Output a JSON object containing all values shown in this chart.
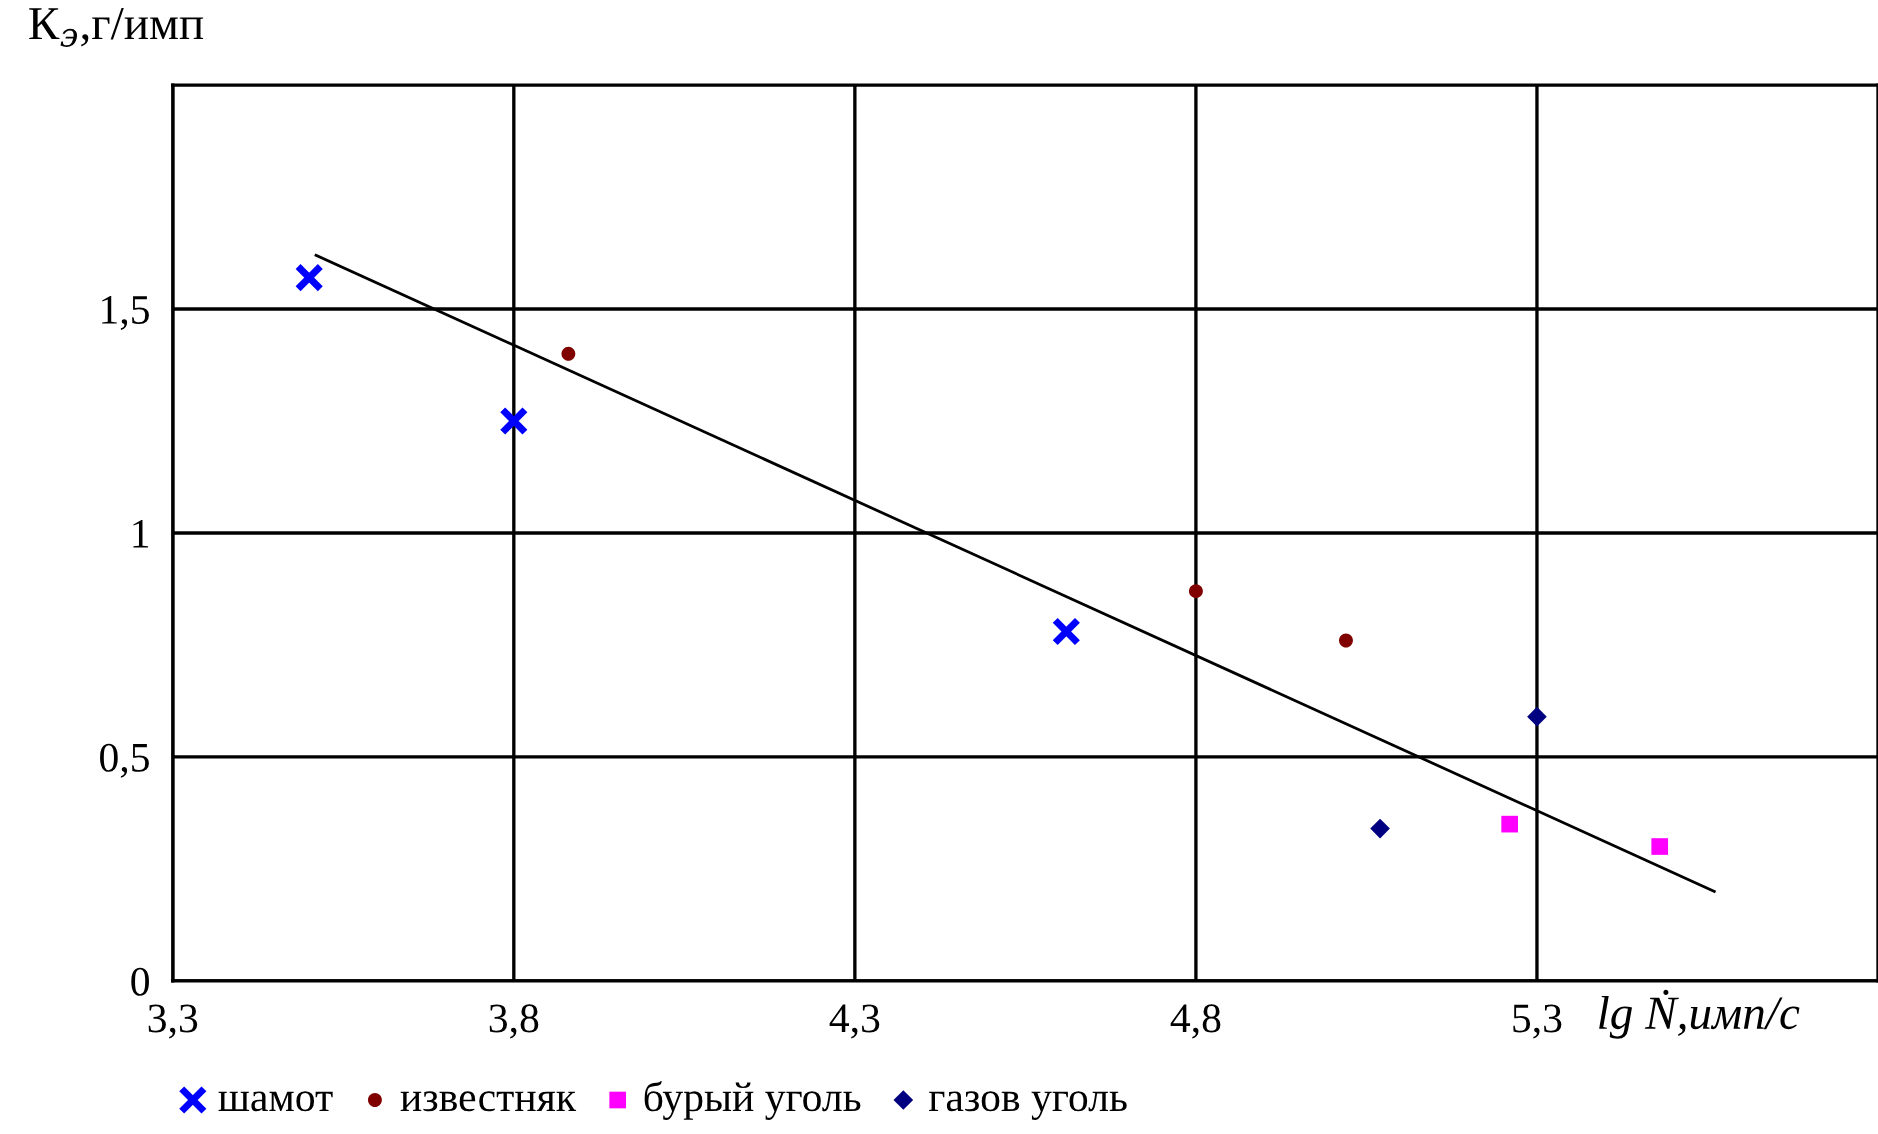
{
  "chart_data": {
    "type": "scatter",
    "xlabel": "lg Ṅ,имп/с",
    "ylabel": "К$_{э}$,г/имп",
    "xlim": [
      3.3,
      5.8
    ],
    "ylim": [
      0,
      2
    ],
    "xticks": [
      {
        "value": 3.3,
        "label": "3,3"
      },
      {
        "value": 3.8,
        "label": "3,8"
      },
      {
        "value": 4.3,
        "label": "4,3"
      },
      {
        "value": 4.8,
        "label": "4,8"
      },
      {
        "value": 5.3,
        "label": "5,3"
      }
    ],
    "yticks": [
      {
        "value": 0,
        "label": "0"
      },
      {
        "value": 0.5,
        "label": "0,5"
      },
      {
        "value": 1,
        "label": "1"
      },
      {
        "value": 1.5,
        "label": "1,5"
      }
    ],
    "grid": true,
    "legend": "bottom",
    "series": [
      {
        "name": "шамот",
        "color": "#0000ff",
        "marker": "cross",
        "x": [
          3.5,
          3.8,
          4.61
        ],
        "values": [
          1.57,
          1.25,
          0.78
        ]
      },
      {
        "name": "известняк",
        "color": "#800000",
        "marker": "circle",
        "x": [
          3.88,
          4.8,
          5.02
        ],
        "values": [
          1.4,
          0.87,
          0.76
        ]
      },
      {
        "name": "бурый уголь",
        "color": "#ff00ff",
        "marker": "square",
        "x": [
          5.26,
          5.48
        ],
        "values": [
          0.35,
          0.3
        ]
      },
      {
        "name": "газов уголь",
        "color": "#000080",
        "marker": "diamond",
        "x": [
          5.07,
          5.3
        ],
        "values": [
          0.34,
          0.59
        ]
      },
      {
        "type": "line",
        "color": "#000000",
        "marker": "none",
        "x": [
          3.51,
          5.56
        ],
        "values": [
          1.62,
          0.2
        ]
      }
    ]
  }
}
